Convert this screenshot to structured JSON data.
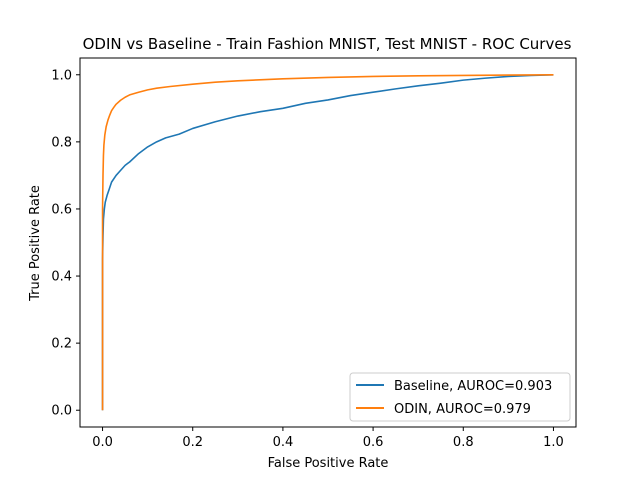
{
  "chart_data": {
    "type": "line",
    "title": "ODIN vs Baseline - Train Fashion MNIST, Test MNIST - ROC Curves",
    "xlabel": "False Positive Rate",
    "ylabel": "True Positive Rate",
    "xlim": [
      -0.05,
      1.05
    ],
    "ylim": [
      -0.05,
      1.05
    ],
    "xticks": [
      0.0,
      0.2,
      0.4,
      0.6,
      0.8,
      1.0
    ],
    "yticks": [
      0.0,
      0.2,
      0.4,
      0.6,
      0.8,
      1.0
    ],
    "xtick_labels": [
      "0.0",
      "0.2",
      "0.4",
      "0.6",
      "0.8",
      "1.0"
    ],
    "ytick_labels": [
      "0.0",
      "0.2",
      "0.4",
      "0.6",
      "0.8",
      "1.0"
    ],
    "grid": false,
    "legend_position": "lower-right",
    "series": [
      {
        "name": "Baseline, AUROC=0.903",
        "color": "#1f77b4",
        "x": [
          0,
          0,
          0.001,
          0.002,
          0.004,
          0.006,
          0.01,
          0.015,
          0.02,
          0.03,
          0.04,
          0.05,
          0.06,
          0.08,
          0.1,
          0.12,
          0.14,
          0.17,
          0.2,
          0.25,
          0.3,
          0.35,
          0.4,
          0.45,
          0.5,
          0.55,
          0.6,
          0.65,
          0.7,
          0.75,
          0.8,
          0.85,
          0.9,
          0.95,
          1.0
        ],
        "y": [
          0,
          0.45,
          0.52,
          0.57,
          0.6,
          0.62,
          0.64,
          0.66,
          0.68,
          0.7,
          0.715,
          0.73,
          0.74,
          0.765,
          0.785,
          0.8,
          0.812,
          0.823,
          0.84,
          0.86,
          0.877,
          0.89,
          0.9,
          0.915,
          0.925,
          0.938,
          0.948,
          0.958,
          0.967,
          0.975,
          0.984,
          0.99,
          0.995,
          0.998,
          1.0
        ]
      },
      {
        "name": "ODIN, AUROC=0.979",
        "color": "#ff7f0e",
        "x": [
          0,
          0,
          0.001,
          0.002,
          0.003,
          0.005,
          0.008,
          0.012,
          0.016,
          0.02,
          0.025,
          0.03,
          0.04,
          0.05,
          0.06,
          0.08,
          0.1,
          0.12,
          0.15,
          0.2,
          0.25,
          0.3,
          0.4,
          0.5,
          0.6,
          0.7,
          0.8,
          0.9,
          1.0
        ],
        "y": [
          0,
          0.6,
          0.7,
          0.76,
          0.79,
          0.82,
          0.845,
          0.865,
          0.88,
          0.893,
          0.903,
          0.912,
          0.924,
          0.933,
          0.94,
          0.948,
          0.955,
          0.96,
          0.965,
          0.972,
          0.978,
          0.982,
          0.988,
          0.992,
          0.995,
          0.997,
          0.998,
          0.999,
          1.0
        ]
      }
    ]
  }
}
